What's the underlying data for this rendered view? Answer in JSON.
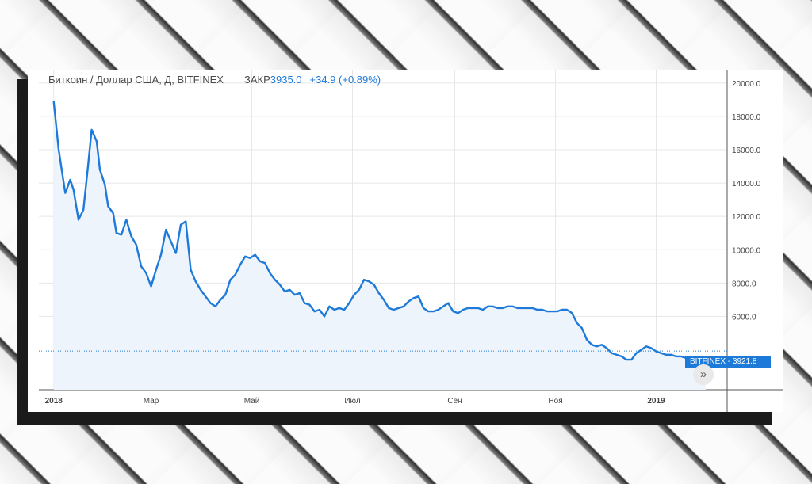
{
  "title": {
    "symbol": "Биткоин / Доллар США, Д, BITFINEX",
    "close_label": "ЗАКР",
    "close_value": "3935.0",
    "change": "+34.9 (+0.89%)"
  },
  "price_tag": {
    "exchange": "BITFINEX",
    "value": "3921.8"
  },
  "nav_button": {
    "icon": "double-chevron-right-icon",
    "glyph": "»"
  },
  "colors": {
    "line": "#1e7ad9",
    "area": "#eef4fb",
    "grid": "#e7e7e7"
  },
  "chart_data": {
    "type": "area",
    "title": "Биткоин / Доллар США, Д, BITFINEX",
    "xlabel": "",
    "ylabel": "",
    "x_ticks": [
      "2018",
      "Мар",
      "Май",
      "Июл",
      "Сен",
      "Ноя",
      "2019"
    ],
    "y_ticks": [
      "6000.0",
      "8000.0",
      "10000.0",
      "12000.0",
      "14000.0",
      "16000.0",
      "18000.0",
      "20000.0"
    ],
    "ylim": [
      1600,
      20800
    ],
    "x": [
      "2018-01-01",
      "2018-01-04",
      "2018-01-08",
      "2018-01-11",
      "2018-01-13",
      "2018-01-16",
      "2018-01-19",
      "2018-01-22",
      "2018-01-24",
      "2018-01-27",
      "2018-01-29",
      "2018-02-01",
      "2018-02-03",
      "2018-02-06",
      "2018-02-08",
      "2018-02-11",
      "2018-02-14",
      "2018-02-17",
      "2018-02-20",
      "2018-02-23",
      "2018-02-26",
      "2018-03-01",
      "2018-03-04",
      "2018-03-07",
      "2018-03-10",
      "2018-03-13",
      "2018-03-16",
      "2018-03-19",
      "2018-03-22",
      "2018-03-25",
      "2018-03-28",
      "2018-03-31",
      "2018-04-03",
      "2018-04-06",
      "2018-04-09",
      "2018-04-12",
      "2018-04-15",
      "2018-04-18",
      "2018-04-21",
      "2018-04-24",
      "2018-04-27",
      "2018-04-30",
      "2018-05-03",
      "2018-05-06",
      "2018-05-09",
      "2018-05-12",
      "2018-05-15",
      "2018-05-18",
      "2018-05-21",
      "2018-05-24",
      "2018-05-27",
      "2018-05-30",
      "2018-06-02",
      "2018-06-05",
      "2018-06-08",
      "2018-06-11",
      "2018-06-14",
      "2018-06-17",
      "2018-06-20",
      "2018-06-23",
      "2018-06-26",
      "2018-06-29",
      "2018-07-02",
      "2018-07-05",
      "2018-07-08",
      "2018-07-11",
      "2018-07-14",
      "2018-07-17",
      "2018-07-20",
      "2018-07-23",
      "2018-07-26",
      "2018-07-29",
      "2018-08-01",
      "2018-08-04",
      "2018-08-07",
      "2018-08-10",
      "2018-08-13",
      "2018-08-16",
      "2018-08-19",
      "2018-08-22",
      "2018-08-25",
      "2018-08-28",
      "2018-08-31",
      "2018-09-03",
      "2018-09-06",
      "2018-09-09",
      "2018-09-12",
      "2018-09-15",
      "2018-09-18",
      "2018-09-21",
      "2018-09-24",
      "2018-09-27",
      "2018-09-30",
      "2018-10-03",
      "2018-10-06",
      "2018-10-09",
      "2018-10-12",
      "2018-10-15",
      "2018-10-18",
      "2018-10-21",
      "2018-10-24",
      "2018-10-27",
      "2018-10-30",
      "2018-11-02",
      "2018-11-05",
      "2018-11-08",
      "2018-11-11",
      "2018-11-14",
      "2018-11-17",
      "2018-11-20",
      "2018-11-23",
      "2018-11-26",
      "2018-11-29",
      "2018-12-02",
      "2018-12-05",
      "2018-12-08",
      "2018-12-11",
      "2018-12-14",
      "2018-12-17",
      "2018-12-20",
      "2018-12-23",
      "2018-12-26",
      "2018-12-29",
      "2019-01-01",
      "2019-01-04",
      "2019-01-07",
      "2019-01-10",
      "2019-01-13",
      "2019-01-16",
      "2019-01-19",
      "2019-01-22",
      "2019-01-25",
      "2019-01-28",
      "2019-01-31"
    ],
    "series": [
      {
        "values": [
          18900,
          16000,
          13400,
          14200,
          13600,
          11800,
          12400,
          15200,
          17200,
          16500,
          14800,
          13900,
          12600,
          12200,
          11000,
          10900,
          11800,
          10800,
          10300,
          9000,
          8600,
          7800,
          8800,
          9700,
          11200,
          10500,
          9800,
          11500,
          11700,
          8800,
          8100,
          7600,
          7200,
          6800,
          6600,
          7000,
          7300,
          8200,
          8500,
          9100,
          9600,
          9500,
          9700,
          9300,
          9200,
          8600,
          8200,
          7900,
          7500,
          7600,
          7300,
          7400,
          6800,
          6700,
          6300,
          6400,
          6000,
          6600,
          6400,
          6500,
          6400,
          6800,
          7300,
          7600,
          8200,
          8100,
          7900,
          7400,
          7000,
          6500,
          6400,
          6500,
          6600,
          6900,
          7100,
          7200,
          6500,
          6300,
          6300,
          6400,
          6600,
          6800,
          6300,
          6200,
          6400,
          6500,
          6500,
          6500,
          6400,
          6600,
          6600,
          6500,
          6500,
          6600,
          6600,
          6500,
          6500,
          6500,
          6500,
          6400,
          6400,
          6300,
          6300,
          6300,
          6400,
          6400,
          6200,
          5600,
          5300,
          4600,
          4300,
          4200,
          4300,
          4100,
          3800,
          3700,
          3600,
          3400,
          3400,
          3800,
          4000,
          4200,
          4100,
          3900,
          3800,
          3700,
          3700,
          3600,
          3600,
          3500,
          3400,
          3400,
          3500,
          3500
        ]
      }
    ],
    "price_line": 3921.8,
    "grid": true,
    "legend": "none"
  }
}
